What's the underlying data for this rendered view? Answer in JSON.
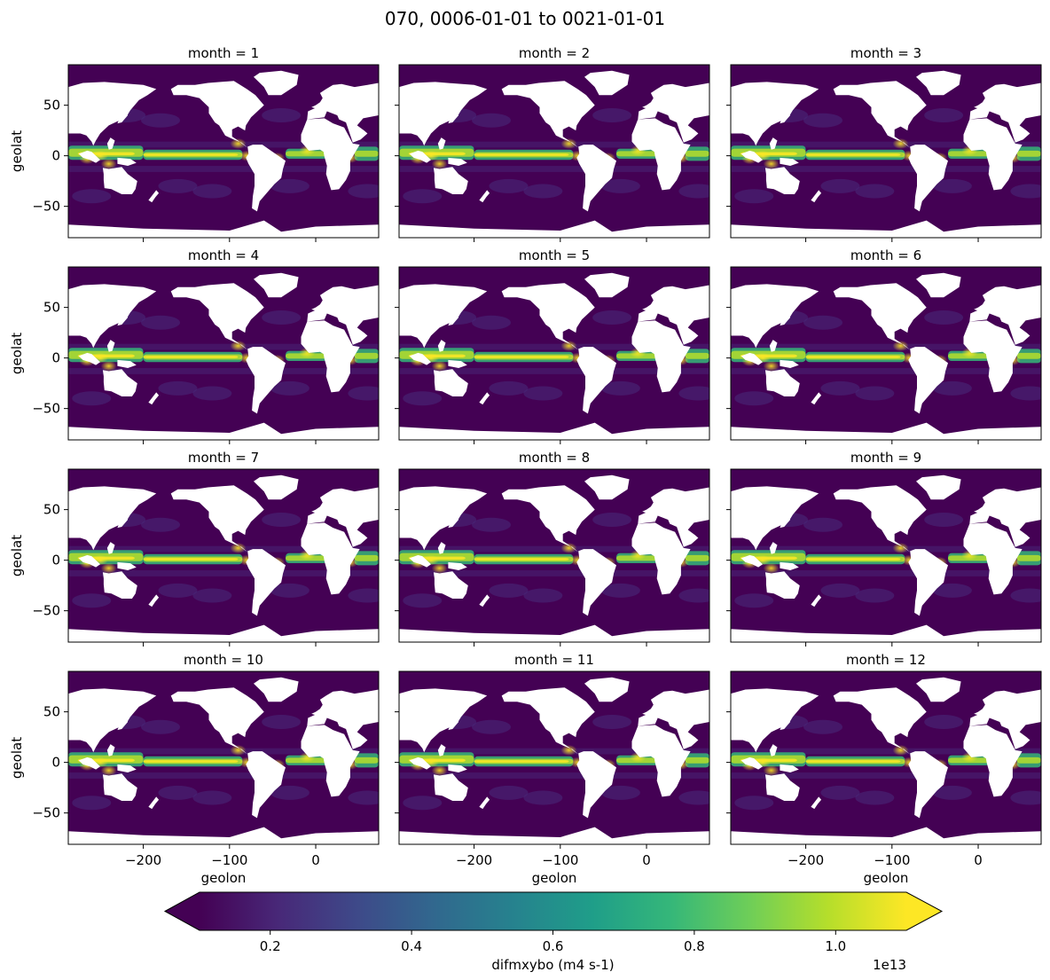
{
  "chart_data": {
    "type": "heatmap",
    "title": "070, 0006-01-01 to 0021-01-01",
    "xlabel": "geolon",
    "ylabel": "geolat",
    "xlim": [
      -287,
      73
    ],
    "ylim": [
      -81,
      90
    ],
    "x_ticks": [
      -200,
      -100,
      0
    ],
    "x_tick_labels": [
      "−200",
      "−100",
      "0"
    ],
    "y_ticks": [
      -50,
      0,
      50
    ],
    "y_tick_labels": [
      "−50",
      "0",
      "50"
    ],
    "panels": [
      {
        "title": "month = 1"
      },
      {
        "title": "month = 2"
      },
      {
        "title": "month = 3"
      },
      {
        "title": "month = 4"
      },
      {
        "title": "month = 5"
      },
      {
        "title": "month = 6"
      },
      {
        "title": "month = 7"
      },
      {
        "title": "month = 8"
      },
      {
        "title": "month = 9"
      },
      {
        "title": "month = 10"
      },
      {
        "title": "month = 11"
      },
      {
        "title": "month = 12"
      }
    ],
    "colorbar": {
      "label": "difmxybo (m4 s-1)",
      "colormap": "viridis",
      "range": [
        0.1,
        1.1
      ],
      "extend": "both",
      "ticks": [
        0.2,
        0.4,
        0.6,
        0.8,
        1.0
      ],
      "tick_labels": [
        "0.2",
        "0.4",
        "0.6",
        "0.8",
        "1.0"
      ],
      "offset_label": "1e13"
    },
    "colors": {
      "viridis": [
        "#440154",
        "#482878",
        "#3e4989",
        "#31688e",
        "#26828e",
        "#1f9e89",
        "#35b779",
        "#6ece58",
        "#b5de2b",
        "#fde725"
      ],
      "land": "#ffffff"
    }
  }
}
